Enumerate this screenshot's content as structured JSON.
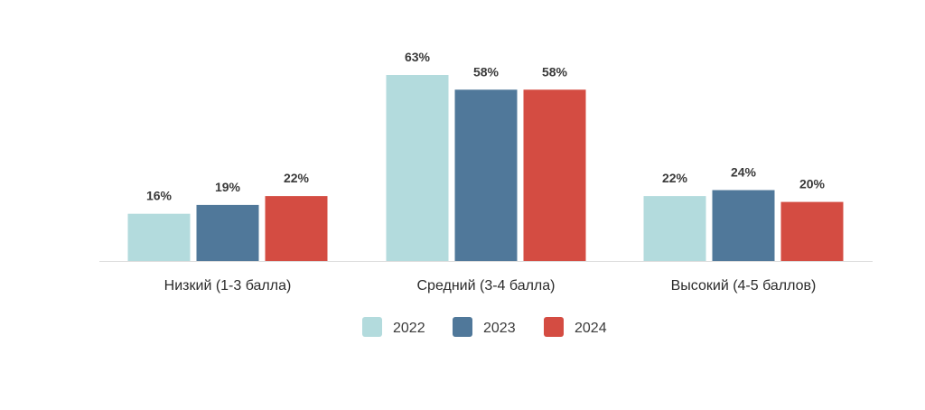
{
  "chart_data": {
    "type": "bar",
    "title": "",
    "xlabel": "",
    "ylabel": "",
    "ylim": [
      0,
      70
    ],
    "grid": false,
    "legend_position": "bottom-center",
    "value_suffix": "%",
    "categories": [
      "Низкий (1-3 балла)",
      "Средний (3-4 балла)",
      "Высокий (4-5 баллов)"
    ],
    "series": [
      {
        "name": "2022",
        "color": "#b3dbdd",
        "values": [
          16,
          63,
          22
        ]
      },
      {
        "name": "2023",
        "color": "#50789a",
        "values": [
          19,
          58,
          24
        ]
      },
      {
        "name": "2024",
        "color": "#d44c42",
        "values": [
          22,
          58,
          20
        ]
      }
    ],
    "axis_color": "#dddddd"
  }
}
